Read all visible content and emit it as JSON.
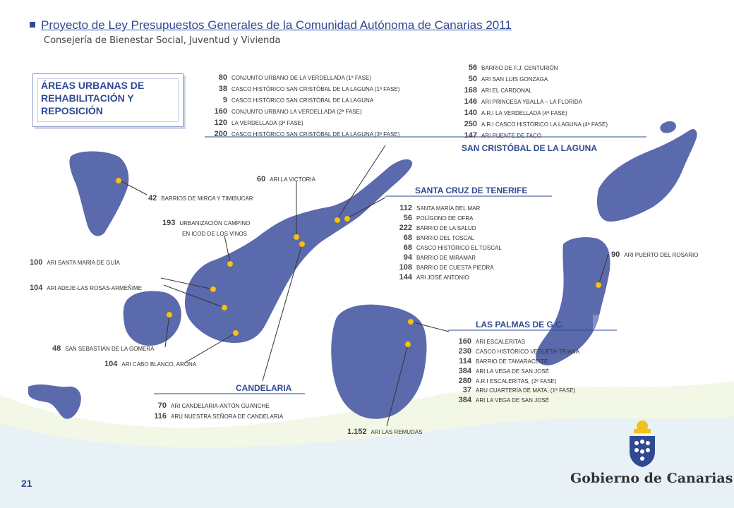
{
  "header": {
    "title": "Proyecto de Ley Presupuestos Generales de la Comunidad Autónoma de Canarias 2011",
    "subtitle": "Consejería de Bienestar Social, Juventud y Vivienda"
  },
  "box_title": "ÁREAS URBANAS DE REHABILITACIÓN Y REPOSICIÓN",
  "laguna": {
    "title": "SAN CRISTÓBAL DE LA LAGUNA",
    "left_items": [
      {
        "num": "80",
        "label": "CONJUNTO URBANO DE LA VERDELLADA (1ª FASE)"
      },
      {
        "num": "38",
        "label": "CASCO HISTÓRICO SAN CRISTÓBAL DE LA LAGUNA (1ª FASE)"
      },
      {
        "num": "9",
        "label": "CASCO HISTÓRICO SAN CRISTÓBAL DE LA LAGUNA"
      },
      {
        "num": "160",
        "label": "CONJUNTO URBANO LA VERDELLADA (2ª FASE)"
      },
      {
        "num": "120",
        "label": "LA VERDELLADA (3ª FASE)"
      },
      {
        "num": "200",
        "label": "CASCO HISTÓRICO SAN CRISTÓBAL DE LA LAGUNA (3ª FASE)"
      }
    ],
    "right_items": [
      {
        "num": "56",
        "label": "BARRIO DE F.J. CENTURIÓN"
      },
      {
        "num": "50",
        "label": "ARI SAN LUIS GONZAGA"
      },
      {
        "num": "168",
        "label": "ARI EL CARDONAL"
      },
      {
        "num": "146",
        "label": "ARI PRINCESA YBALLA – LA FLORIDA"
      },
      {
        "num": "140",
        "label": "A.R.I LA VERDELLADA (4ª FASE)"
      },
      {
        "num": "250",
        "label": "A.R.I CASCO HISTÓRICO LA LAGUNA (4ª FASE)"
      },
      {
        "num": "147",
        "label": "ARI PUENTE DE TACO"
      }
    ]
  },
  "santa_cruz": {
    "title": "SANTA CRUZ DE TENERIFE",
    "items": [
      {
        "num": "112",
        "label": "SANTA MARÍA DEL MAR"
      },
      {
        "num": "56",
        "label": "POLÍGONO DE OFRA"
      },
      {
        "num": "222",
        "label": "BARRIO DE LA SALUD"
      },
      {
        "num": "68",
        "label": "BARRIO DEL TOSCAL"
      },
      {
        "num": "68",
        "label": "CASCO HISTÓRICO EL TOSCAL"
      },
      {
        "num": "94",
        "label": "BARRIO DE MIRAMAR"
      },
      {
        "num": "108",
        "label": "BARRIO DE CUESTA PIEDRA"
      },
      {
        "num": "144",
        "label": "ARI JOSÉ ANTONIO"
      }
    ]
  },
  "las_palmas": {
    "title": "LAS PALMAS DE G.C.",
    "items": [
      {
        "num": "160",
        "label": "ARI ESCALERITAS"
      },
      {
        "num": "230",
        "label": "CASCO HISTÓRICO VEGUETA-TRIANA"
      },
      {
        "num": "114",
        "label": "BARRIO DE TAMARACEITE"
      },
      {
        "num": "384",
        "label": "ARI LA VEGA DE SAN JOSÉ"
      },
      {
        "num": "280",
        "label": "A.R.I ESCALERITAS, (2ª FASE)"
      },
      {
        "num": "37",
        "label": "ARU CUARTERÍA DE MATA, (1ª FASE)"
      },
      {
        "num": "384",
        "label": "ARI LA VEGA DE SAN JOSÉ"
      }
    ]
  },
  "candelaria": {
    "title": "CANDELARIA",
    "items": [
      {
        "num": "70",
        "label": "ARI CANDELARIA-ANTÓN GUANCHE"
      },
      {
        "num": "116",
        "label": "ARU NUESTRA SEÑORA DE CANDELARIA"
      }
    ]
  },
  "callouts": {
    "victoria": {
      "num": "60",
      "label": "ARI LA VICTORIA"
    },
    "mirca": {
      "num": "42",
      "label": "BARRIOS DE MIRCA Y TIMIBUCAR"
    },
    "campino": {
      "num": "193",
      "label_1": "URBANIZACIÓN CAMPINO",
      "label_2": "EN ICOD DE LOS VINOS"
    },
    "guia": {
      "num": "100",
      "label": "ARI SANTA MARÍA DE GUÍA"
    },
    "adeje": {
      "num": "104",
      "label": "ARI ADEJE-LAS ROSAS-ARMEÑIME"
    },
    "gomera": {
      "num": "48",
      "label": "SAN SEBASTIÁN DE LA GOMERA"
    },
    "arona": {
      "num": "104",
      "label": "ARI CABO BLANCO, ARONA"
    },
    "rosario": {
      "num": "90",
      "label": "ARI PUERTO DEL ROSARIO"
    },
    "remudas": {
      "num": "1.152",
      "label": "ARI LAS REMUDAS"
    }
  },
  "footer": {
    "page_number": "21",
    "government": "Gobierno de Canarias"
  },
  "colors": {
    "island": "#5b6aad",
    "accent": "#2f4a93",
    "marker": "#f2c21b"
  }
}
